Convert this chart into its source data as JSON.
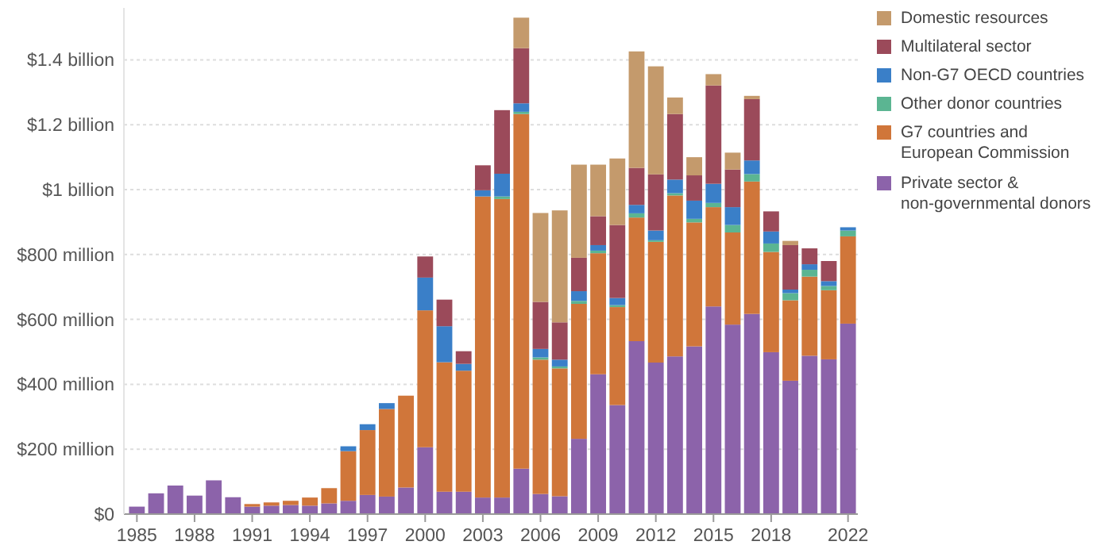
{
  "chart_data": {
    "type": "bar",
    "stacked": true,
    "categories": [
      "1985",
      null,
      null,
      "1988",
      null,
      null,
      "1991",
      null,
      null,
      "1994",
      null,
      null,
      "1997",
      null,
      null,
      "2000",
      null,
      null,
      "2003",
      null,
      null,
      "2006",
      null,
      null,
      "2009",
      null,
      null,
      "2012",
      null,
      null,
      "2015",
      null,
      null,
      "2018",
      null,
      null,
      null,
      "2022"
    ],
    "series": [
      {
        "name": "Private sector & non-governmental donors",
        "color": "#8c63aa",
        "values": [
          23000000.0,
          64000000.0,
          88000000.0,
          57000000.0,
          104000000.0,
          52000000.0,
          23000000.0,
          26000000.0,
          28000000.0,
          26000000.0,
          33000000.0,
          41000000.0,
          59000000.0,
          54000000.0,
          82000000.0,
          206000000.0,
          69000000.0,
          69000000.0,
          51000000.0,
          51000000.0,
          140000000.0,
          62000000.0,
          55000000.0,
          232000000.0,
          431000000.0,
          336000000.0,
          533000000.0,
          467000000.0,
          486000000.0,
          517000000.0,
          640000000.0,
          584000000.0,
          617000000.0,
          499000000.0,
          411000000.0,
          488000000.0,
          477000000.0,
          587000000.0
        ]
      },
      {
        "name": "G7 countries and European Commission",
        "color": "#d0763a",
        "values": [
          null,
          null,
          null,
          null,
          null,
          null,
          8000000.0,
          10000000.0,
          13000000.0,
          25000000.0,
          47000000.0,
          153000000.0,
          200000000.0,
          270000000.0,
          283000000.0,
          422000000.0,
          399000000.0,
          373000000.0,
          928000000.0,
          920000000.0,
          1093000000.0,
          414000000.0,
          394000000.0,
          416000000.0,
          373000000.0,
          302000000.0,
          381000000.0,
          372000000.0,
          496000000.0,
          382000000.0,
          306000000.0,
          284000000.0,
          408000000.0,
          309000000.0,
          248000000.0,
          244000000.0,
          213000000.0,
          269000000.0
        ]
      },
      {
        "name": "Other donor countries",
        "color": "#5bb592",
        "values": [
          null,
          null,
          null,
          null,
          null,
          null,
          null,
          null,
          null,
          null,
          null,
          null,
          null,
          null,
          null,
          null,
          null,
          null,
          null,
          8000000.0,
          7000000.0,
          7000000.0,
          6000000.0,
          9000000.0,
          8000000.0,
          6000000.0,
          13000000.0,
          5000000.0,
          7000000.0,
          11000000.0,
          13000000.0,
          23000000.0,
          23000000.0,
          26000000.0,
          22000000.0,
          21000000.0,
          13000000.0,
          18000000.0
        ]
      },
      {
        "name": "Non-G7 OECD countries",
        "color": "#3a7fc8",
        "values": [
          null,
          null,
          null,
          null,
          null,
          null,
          null,
          null,
          null,
          null,
          null,
          15000000.0,
          18000000.0,
          18000000.0,
          null,
          101000000.0,
          111000000.0,
          21000000.0,
          19000000.0,
          70000000.0,
          26000000.0,
          26000000.0,
          21000000.0,
          30000000.0,
          17000000.0,
          22000000.0,
          26000000.0,
          30000000.0,
          42000000.0,
          56000000.0,
          59000000.0,
          55000000.0,
          42000000.0,
          37000000.0,
          11000000.0,
          17000000.0,
          15000000.0,
          10000000.0
        ]
      },
      {
        "name": "Multilateral sector",
        "color": "#9b4a5a",
        "values": [
          null,
          null,
          null,
          null,
          null,
          null,
          null,
          null,
          null,
          null,
          null,
          null,
          null,
          null,
          null,
          65000000.0,
          82000000.0,
          39000000.0,
          77000000.0,
          196000000.0,
          170000000.0,
          145000000.0,
          115000000.0,
          103000000.0,
          89000000.0,
          225000000.0,
          114000000.0,
          173000000.0,
          202000000.0,
          78000000.0,
          303000000.0,
          116000000.0,
          189000000.0,
          62000000.0,
          137000000.0,
          49000000.0,
          62000000.0,
          null
        ]
      },
      {
        "name": "Domestic resources",
        "color": "#c49a6c",
        "values": [
          null,
          null,
          null,
          null,
          null,
          null,
          null,
          null,
          null,
          null,
          null,
          null,
          null,
          null,
          null,
          null,
          null,
          null,
          null,
          null,
          94000000.0,
          274000000.0,
          345000000.0,
          287000000.0,
          159000000.0,
          205000000.0,
          359000000.0,
          333000000.0,
          51000000.0,
          56000000.0,
          35000000.0,
          52000000.0,
          10000000.0,
          null,
          13000000.0,
          null,
          null,
          null
        ]
      }
    ],
    "ylim": [
      0,
      1560000000.0
    ],
    "yticks": [
      {
        "value": 0,
        "label": "$0"
      },
      {
        "value": 200000000.0,
        "label": "$200 million"
      },
      {
        "value": 400000000.0,
        "label": "$400 million"
      },
      {
        "value": 600000000.0,
        "label": "$600 million"
      },
      {
        "value": 800000000.0,
        "label": "$800 million"
      },
      {
        "value": 1000000000.0,
        "label": "$1 billion"
      },
      {
        "value": 1200000000.0,
        "label": "$1.2 billion"
      },
      {
        "value": 1400000000.0,
        "label": "$1.4 billion"
      }
    ],
    "grid": "y",
    "legend": "right"
  }
}
